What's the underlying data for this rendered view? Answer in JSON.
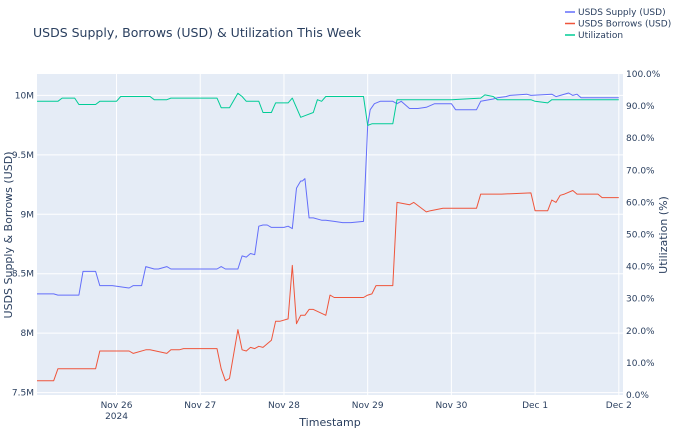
{
  "chart_data": {
    "type": "line",
    "title": "USDS Supply, Borrows (USD) & Utilization This Week",
    "xlabel": "Timestamp",
    "ylabel": "USDS Supply & Borrows (USD)",
    "y2label": "Utilization (%)",
    "x_ticks": [
      {
        "label": "Nov 26",
        "sub": "2024",
        "value": 26
      },
      {
        "label": "Nov 27",
        "sub": "",
        "value": 27
      },
      {
        "label": "Nov 28",
        "sub": "",
        "value": 28
      },
      {
        "label": "Nov 29",
        "sub": "",
        "value": 29
      },
      {
        "label": "Nov 30",
        "sub": "",
        "value": 30
      },
      {
        "label": "Dec 1",
        "sub": "",
        "value": 31
      },
      {
        "label": "Dec 2",
        "sub": "",
        "value": 32
      }
    ],
    "xlim": [
      25.05,
      32.05
    ],
    "ylim": [
      7.48,
      10.18
    ],
    "y_ticks": [
      {
        "label": "7.5M",
        "value": 7.5
      },
      {
        "label": "8M",
        "value": 8.0
      },
      {
        "label": "8.5M",
        "value": 8.5
      },
      {
        "label": "9M",
        "value": 9.0
      },
      {
        "label": "9.5M",
        "value": 9.5
      },
      {
        "label": "10M",
        "value": 10.0
      }
    ],
    "y2lim": [
      0,
      100
    ],
    "y2_ticks": [
      "0.0%",
      "10.0%",
      "20.0%",
      "30.0%",
      "40.0%",
      "50.0%",
      "60.0%",
      "70.0%",
      "80.0%",
      "90.0%",
      "100.0%"
    ],
    "grid": true,
    "legend_position": "top-right",
    "series": [
      {
        "name": "USDS Supply (USD)",
        "color": "#636efa",
        "axis": "left",
        "x": [
          25.05,
          25.25,
          25.3,
          25.55,
          25.6,
          25.75,
          25.8,
          25.9,
          25.95,
          26.15,
          26.2,
          26.3,
          26.35,
          26.45,
          26.5,
          26.6,
          26.65,
          26.75,
          26.8,
          27.2,
          27.25,
          27.3,
          27.45,
          27.5,
          27.55,
          27.6,
          27.65,
          27.7,
          27.75,
          27.8,
          27.85,
          28.0,
          28.05,
          28.1,
          28.15,
          28.2,
          28.22,
          28.25,
          28.3,
          28.35,
          28.45,
          28.5,
          28.6,
          28.7,
          28.75,
          28.8,
          28.95,
          29.0,
          29.03,
          29.08,
          29.15,
          29.3,
          29.35,
          29.4,
          29.5,
          29.6,
          29.7,
          29.8,
          30.0,
          30.05,
          30.1,
          30.3,
          30.35,
          30.5,
          30.55,
          30.65,
          30.7,
          30.9,
          30.95,
          31.2,
          31.25,
          31.4,
          31.45,
          31.5,
          31.55,
          31.6,
          31.7,
          31.75,
          32.0
        ],
        "y": [
          8.33,
          8.33,
          8.32,
          8.32,
          8.52,
          8.52,
          8.4,
          8.4,
          8.4,
          8.38,
          8.4,
          8.4,
          8.56,
          8.54,
          8.54,
          8.56,
          8.54,
          8.54,
          8.54,
          8.54,
          8.56,
          8.54,
          8.54,
          8.65,
          8.64,
          8.67,
          8.66,
          8.9,
          8.91,
          8.91,
          8.89,
          8.89,
          8.9,
          8.88,
          9.22,
          9.28,
          9.28,
          9.3,
          8.97,
          8.97,
          8.95,
          8.95,
          8.94,
          8.93,
          8.93,
          8.93,
          8.94,
          9.75,
          9.88,
          9.93,
          9.95,
          9.95,
          9.93,
          9.95,
          9.89,
          9.89,
          9.9,
          9.93,
          9.93,
          9.88,
          9.88,
          9.88,
          9.95,
          9.97,
          9.98,
          9.99,
          10.0,
          10.01,
          10.0,
          10.01,
          9.99,
          10.02,
          10.0,
          10.01,
          9.98,
          9.98,
          9.98,
          9.98,
          9.98
        ]
      },
      {
        "name": "USDS Borrows (USD)",
        "color": "#ef553b",
        "axis": "left",
        "x": [
          25.05,
          25.2,
          25.25,
          25.3,
          25.75,
          25.8,
          26.15,
          26.2,
          26.35,
          26.4,
          26.6,
          26.65,
          26.75,
          26.8,
          27.2,
          27.25,
          27.3,
          27.35,
          27.45,
          27.5,
          27.55,
          27.6,
          27.65,
          27.7,
          27.75,
          27.85,
          27.9,
          27.95,
          28.05,
          28.1,
          28.15,
          28.2,
          28.25,
          28.3,
          28.35,
          28.5,
          28.55,
          28.6,
          28.7,
          28.75,
          28.95,
          29.0,
          29.05,
          29.1,
          29.3,
          29.35,
          29.5,
          29.55,
          29.7,
          29.75,
          29.9,
          30.0,
          30.3,
          30.35,
          30.5,
          30.6,
          30.95,
          31.0,
          31.15,
          31.2,
          31.25,
          31.3,
          31.35,
          31.45,
          31.5,
          31.6,
          31.75,
          31.8,
          32.0
        ],
        "y": [
          7.6,
          7.6,
          7.6,
          7.7,
          7.7,
          7.85,
          7.85,
          7.83,
          7.86,
          7.86,
          7.83,
          7.86,
          7.86,
          7.87,
          7.87,
          7.7,
          7.6,
          7.62,
          8.03,
          7.86,
          7.85,
          7.88,
          7.87,
          7.89,
          7.88,
          7.94,
          8.1,
          8.1,
          8.12,
          8.57,
          8.08,
          8.15,
          8.15,
          8.2,
          8.2,
          8.15,
          8.32,
          8.3,
          8.3,
          8.3,
          8.3,
          8.32,
          8.33,
          8.4,
          8.4,
          9.1,
          9.08,
          9.1,
          9.02,
          9.03,
          9.05,
          9.05,
          9.05,
          9.17,
          9.17,
          9.17,
          9.18,
          9.03,
          9.03,
          9.12,
          9.1,
          9.16,
          9.17,
          9.2,
          9.17,
          9.17,
          9.17,
          9.14,
          9.14
        ]
      },
      {
        "name": "Utilization",
        "color": "#00cc96",
        "axis": "right",
        "x": [
          25.05,
          25.3,
          25.35,
          25.5,
          25.55,
          25.75,
          25.8,
          26.0,
          26.05,
          26.4,
          26.45,
          26.6,
          26.65,
          27.2,
          27.25,
          27.35,
          27.45,
          27.5,
          27.55,
          27.7,
          27.75,
          27.85,
          27.9,
          28.05,
          28.1,
          28.2,
          28.25,
          28.35,
          28.4,
          28.45,
          28.5,
          28.95,
          29.0,
          29.05,
          29.3,
          29.35,
          30.0,
          30.35,
          30.4,
          30.5,
          30.55,
          30.95,
          31.0,
          31.15,
          31.2,
          32.0
        ],
        "y": [
          91.5,
          91.5,
          92.5,
          92.5,
          90.5,
          90.5,
          91.5,
          91.5,
          93,
          93,
          92,
          92,
          92.5,
          92.5,
          89.5,
          89.5,
          94,
          93,
          91.5,
          91.5,
          88,
          88,
          91,
          91,
          92.5,
          86.5,
          87,
          88,
          92,
          91.5,
          93,
          93,
          84,
          84.5,
          84.5,
          92,
          92,
          92.5,
          93.5,
          93,
          92,
          92,
          91.5,
          91,
          92,
          92
        ]
      }
    ]
  }
}
